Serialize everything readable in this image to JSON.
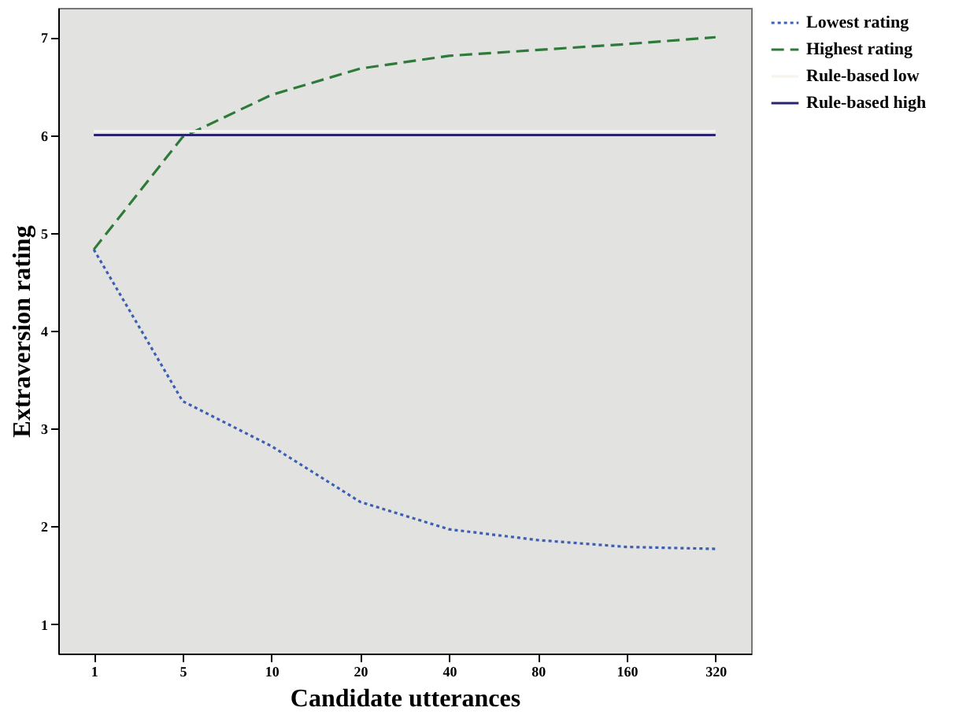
{
  "chart_data": {
    "type": "line",
    "xlabel": "Candidate utterances",
    "ylabel": "Extraversion rating",
    "categories": [
      "1",
      "5",
      "10",
      "20",
      "40",
      "80",
      "160",
      "320"
    ],
    "ylim": [
      0.7,
      7.3
    ],
    "yticks": [
      1,
      2,
      3,
      4,
      5,
      6,
      7
    ],
    "grid": false,
    "legend": "top right",
    "marker": "none",
    "series": [
      {
        "name": "Lowest rating",
        "color": "#3c5fb4",
        "line_style": "dotted",
        "values": [
          4.83,
          3.28,
          2.82,
          2.25,
          1.97,
          1.86,
          1.79,
          1.77
        ]
      },
      {
        "name": "Highest rating",
        "color": "#2e7a3a",
        "line_style": "dashed",
        "values": [
          4.83,
          5.98,
          6.41,
          6.68,
          6.81,
          6.87,
          6.93,
          7.0
        ]
      },
      {
        "name": "Rule-based low",
        "color": "#f6f4ec",
        "line_style": "solid",
        "values": [
          6.04,
          6.04,
          6.04,
          6.04,
          6.04,
          6.04,
          6.04,
          6.04
        ]
      },
      {
        "name": "Rule-based high",
        "color": "#2a2470",
        "line_style": "solid",
        "values": [
          6.0,
          6.0,
          6.0,
          6.0,
          6.0,
          6.0,
          6.0,
          6.0
        ]
      }
    ]
  }
}
